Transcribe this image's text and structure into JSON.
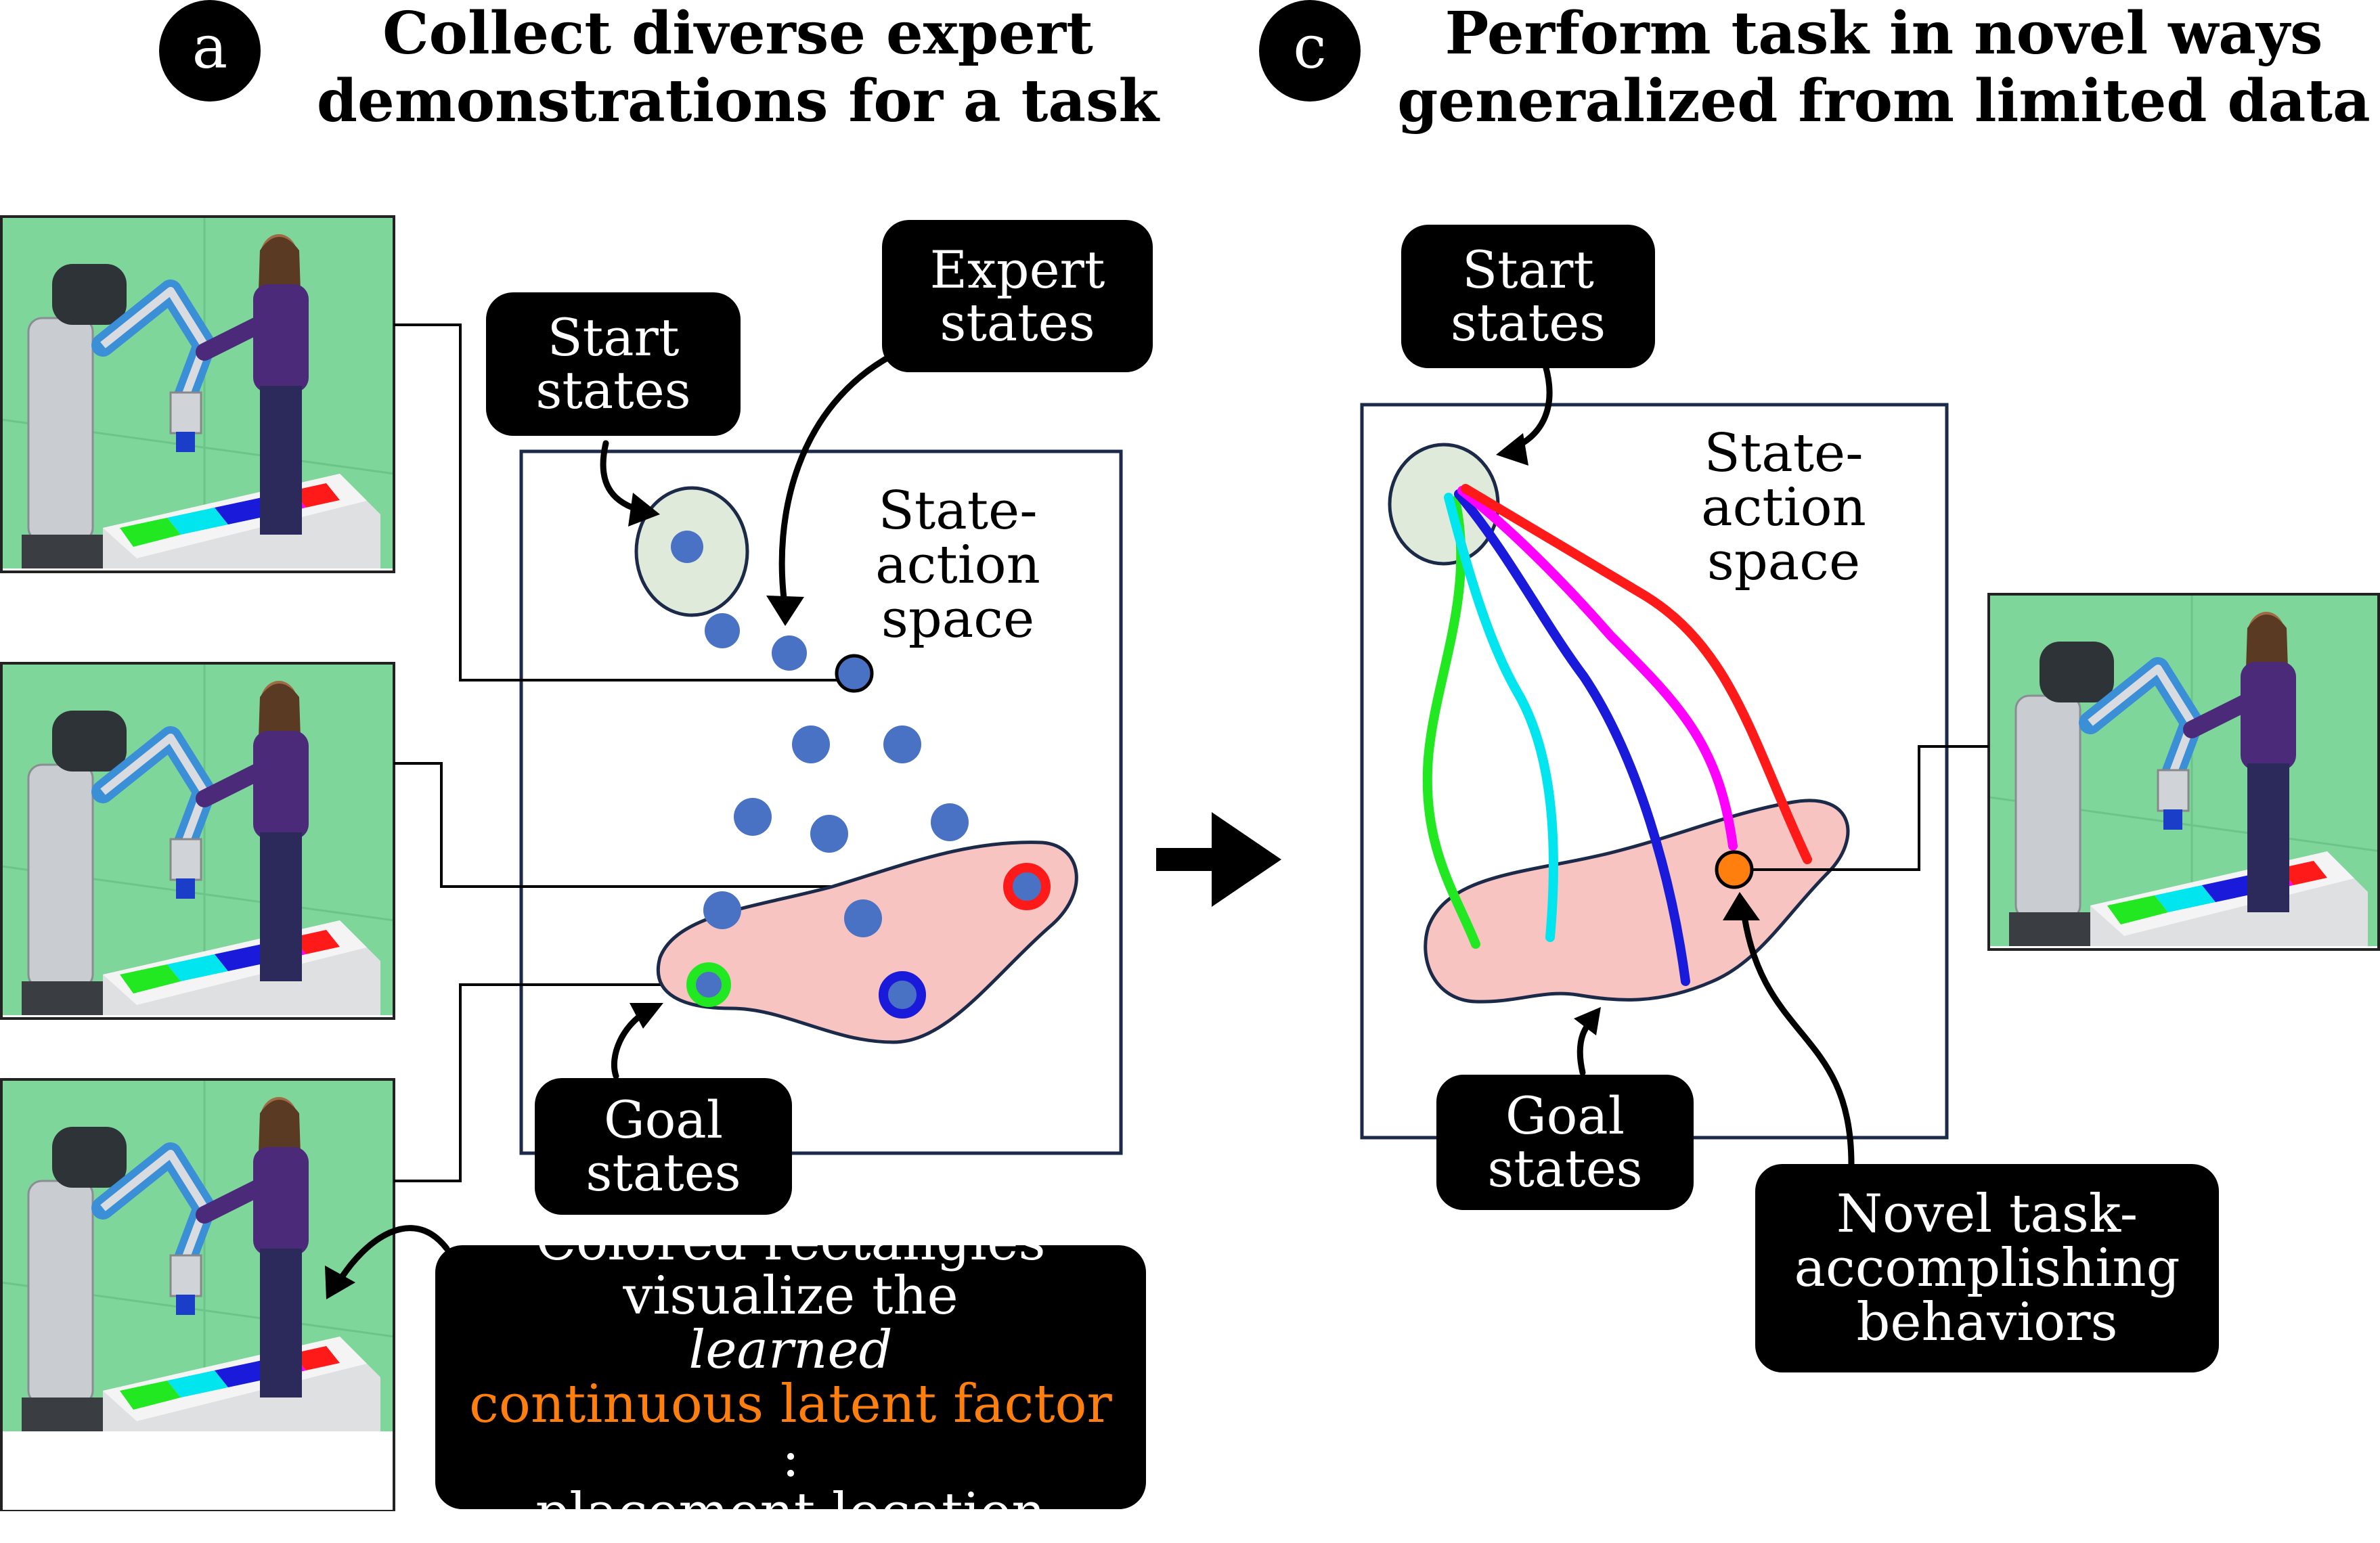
{
  "panel_a": {
    "badge": "a",
    "title_line1": "Collect diverse expert",
    "title_line2": "demonstrations for a task",
    "space_label_line1": "State-action",
    "space_label_line2": "space",
    "start_label_line1": "Start",
    "start_label_line2": "states",
    "expert_label_line1": "Expert",
    "expert_label_line2": "states",
    "goal_label_line1": "Goal",
    "goal_label_line2": "states",
    "note_line1": "Colored rectangles",
    "note_line2_prefix": "visualize the ",
    "note_line2_em": "learned",
    "note_line3_accent": "continuous latent factor",
    "note_line3_suffix": ":",
    "note_line4": "placement location"
  },
  "panel_c": {
    "badge": "c",
    "title_line1": "Perform task in novel ways",
    "title_line2": "generalized from limited data",
    "space_label_line1": "State-action",
    "space_label_line2": "space",
    "start_label_line1": "Start",
    "start_label_line2": "states",
    "goal_label_line1": "Goal",
    "goal_label_line2": "states",
    "novel_label_line1": "Novel task-",
    "novel_label_line2": "accomplishing",
    "novel_label_line3": "behaviors"
  },
  "colors": {
    "state_dot": "#4a72c4",
    "start_region": "#dfeadb",
    "goal_region": "#f7c4c1",
    "scene_background": "#7ed69a",
    "accent": "#ff7f0e",
    "trajectories": [
      "#22e822",
      "#00e5ee",
      "#1a1adb",
      "#ff00ff",
      "#ff1a1a"
    ]
  }
}
